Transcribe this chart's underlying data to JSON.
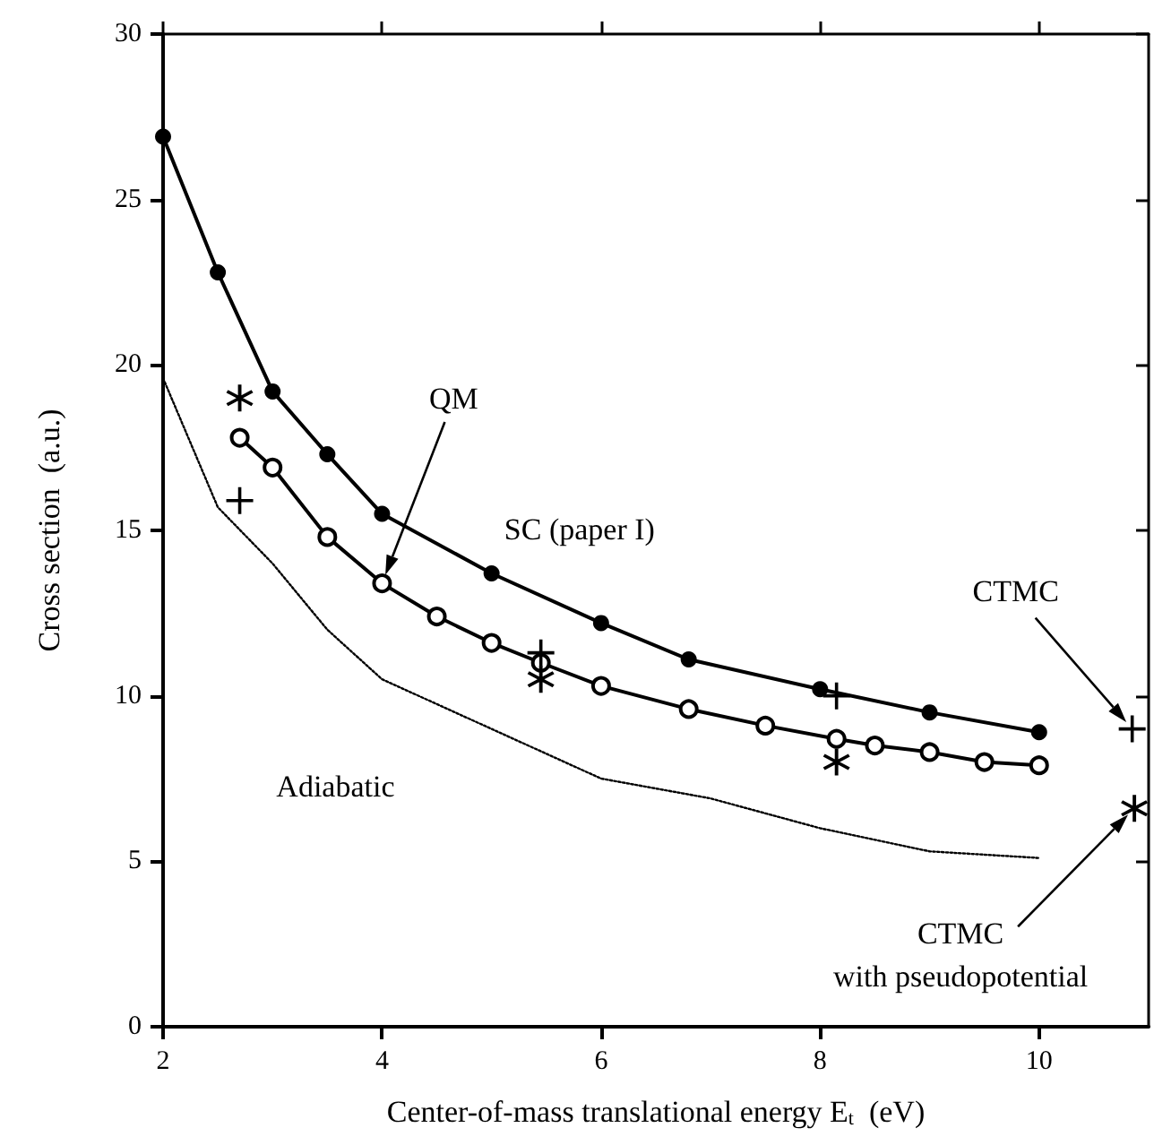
{
  "chart_data": {
    "type": "line",
    "xlabel": "Center-of-mass translational energy E$_{t}$  (eV)",
    "ylabel": "Cross section  (a.u.)",
    "xlim": [
      2,
      11
    ],
    "xticks": [
      2,
      4,
      6,
      8,
      10
    ],
    "ylim": [
      0,
      30
    ],
    "yticks": [
      0,
      5,
      10,
      15,
      20,
      25,
      30
    ],
    "series": [
      {
        "color": "#000000",
        "marker": "circle",
        "line_style": "solid",
        "x": [
          2,
          2.5,
          3,
          3.5,
          4,
          5,
          6,
          6.8,
          8,
          9,
          10
        ],
        "values": [
          26.9,
          22.8,
          19.2,
          17.3,
          15.5,
          13.7,
          12.2,
          11.1,
          10.2,
          9.5,
          8.9
        ]
      },
      {
        "color": "#000000",
        "marker": "circle",
        "line_style": "solid",
        "x": [
          2.7,
          3,
          3.5,
          4,
          4.5,
          5,
          5.45,
          6,
          6.8,
          7.5,
          8.15,
          8.5,
          9,
          9.5,
          10
        ],
        "values": [
          17.8,
          16.9,
          14.8,
          13.4,
          12.4,
          11.6,
          11.0,
          10.3,
          9.6,
          9.1,
          8.7,
          8.5,
          8.3,
          8.0,
          7.9
        ]
      },
      {
        "color": "#000000",
        "marker": "none",
        "line_style": "dotted",
        "x": [
          2,
          2.5,
          3,
          3.5,
          4,
          5,
          6,
          7,
          8,
          9,
          10
        ],
        "values": [
          19.6,
          15.7,
          14.0,
          12.0,
          10.5,
          9.0,
          7.5,
          6.9,
          6.0,
          5.3,
          5.1
        ]
      },
      {
        "type": "scatter",
        "color": "#000000",
        "marker": "cross",
        "x": [
          2.7,
          5.45,
          8.15,
          10.85
        ],
        "values": [
          15.9,
          11.3,
          10.0,
          9.0
        ]
      },
      {
        "type": "scatter",
        "color": "#000000",
        "marker": "cross",
        "x": [
          2.7,
          5.45,
          8.15,
          10.87
        ],
        "values": [
          19.0,
          10.5,
          8.0,
          6.6
        ]
      }
    ],
    "annotations": [
      "QM",
      {
        "text": "SC (paper I)",
        "x": 6,
        "y": 12.2
      },
      {
        "text": "Adiabatic",
        "x": 4,
        "y": 10.5
      },
      "CTMC",
      "CTMC\nwith pseudopotential"
    ]
  }
}
